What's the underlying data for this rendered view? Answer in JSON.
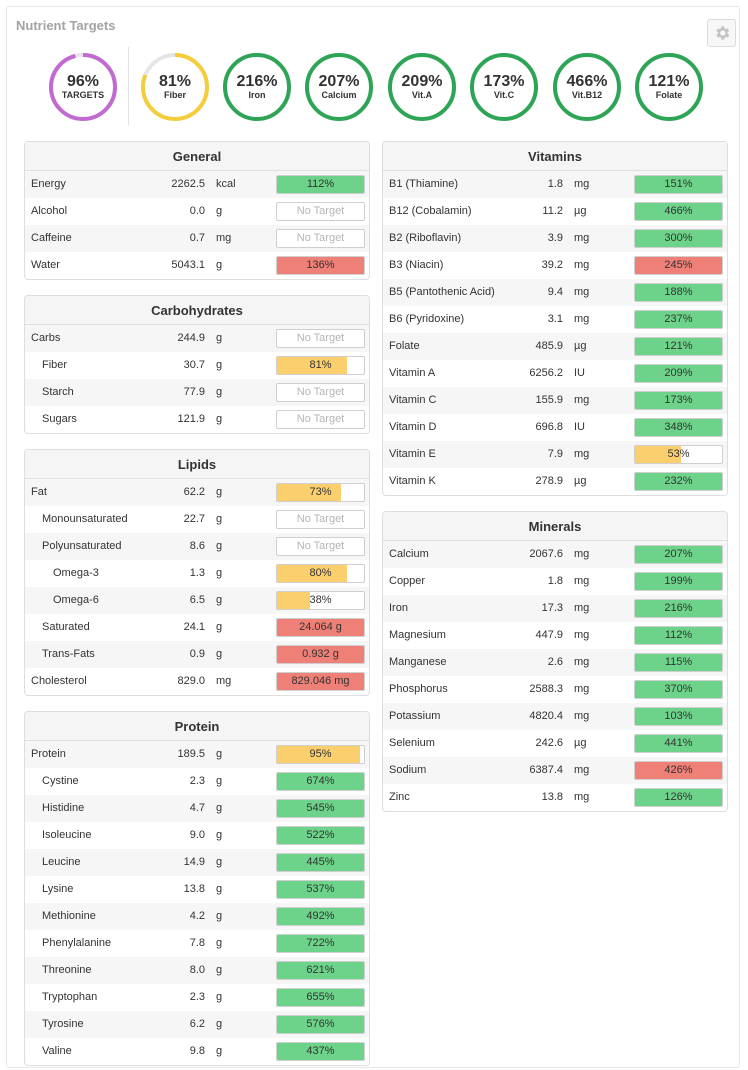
{
  "title": "Nutrient Targets",
  "settings_icon": "gear-icon",
  "colors": {
    "purple": "#c26ad1",
    "yellow": "#f5cd3a",
    "green": "#2ea556",
    "track": "#e5e5e5",
    "bar_green": "#6dd38a",
    "bar_yellow": "#fbcf6e",
    "bar_red": "#ef8078"
  },
  "rings": [
    {
      "pct": "96%",
      "label": "TARGETS",
      "value": 96,
      "color": "purple"
    },
    {
      "pct": "81%",
      "label": "Fiber",
      "value": 81,
      "color": "yellow"
    },
    {
      "pct": "216%",
      "label": "Iron",
      "value": 216,
      "color": "green"
    },
    {
      "pct": "207%",
      "label": "Calcium",
      "value": 207,
      "color": "green"
    },
    {
      "pct": "209%",
      "label": "Vit.A",
      "value": 209,
      "color": "green"
    },
    {
      "pct": "173%",
      "label": "Vit.C",
      "value": 173,
      "color": "green"
    },
    {
      "pct": "466%",
      "label": "Vit.B12",
      "value": 466,
      "color": "green"
    },
    {
      "pct": "121%",
      "label": "Folate",
      "value": 121,
      "color": "green"
    }
  ],
  "panels": {
    "general": {
      "title": "General",
      "rows": [
        {
          "name": "Energy",
          "amount": "2262.5",
          "unit": "kcal",
          "bar": "112%",
          "fill": 1,
          "color": "green",
          "indent": 0
        },
        {
          "name": "Alcohol",
          "amount": "0.0",
          "unit": "g",
          "bar": "No Target",
          "fill": 0,
          "color": "none",
          "indent": 0
        },
        {
          "name": "Caffeine",
          "amount": "0.7",
          "unit": "mg",
          "bar": "No Target",
          "fill": 0,
          "color": "none",
          "indent": 0
        },
        {
          "name": "Water",
          "amount": "5043.1",
          "unit": "g",
          "bar": "136%",
          "fill": 1,
          "color": "red",
          "indent": 0
        }
      ]
    },
    "carbohydrates": {
      "title": "Carbohydrates",
      "rows": [
        {
          "name": "Carbs",
          "amount": "244.9",
          "unit": "g",
          "bar": "No Target",
          "fill": 0,
          "color": "none",
          "indent": 0
        },
        {
          "name": "Fiber",
          "amount": "30.7",
          "unit": "g",
          "bar": "81%",
          "fill": 0.81,
          "color": "yellow",
          "indent": 1
        },
        {
          "name": "Starch",
          "amount": "77.9",
          "unit": "g",
          "bar": "No Target",
          "fill": 0,
          "color": "none",
          "indent": 1
        },
        {
          "name": "Sugars",
          "amount": "121.9",
          "unit": "g",
          "bar": "No Target",
          "fill": 0,
          "color": "none",
          "indent": 1
        }
      ]
    },
    "lipids": {
      "title": "Lipids",
      "rows": [
        {
          "name": "Fat",
          "amount": "62.2",
          "unit": "g",
          "bar": "73%",
          "fill": 0.73,
          "color": "yellow",
          "indent": 0
        },
        {
          "name": "Monounsaturated",
          "amount": "22.7",
          "unit": "g",
          "bar": "No Target",
          "fill": 0,
          "color": "none",
          "indent": 1
        },
        {
          "name": "Polyunsaturated",
          "amount": "8.6",
          "unit": "g",
          "bar": "No Target",
          "fill": 0,
          "color": "none",
          "indent": 1
        },
        {
          "name": "Omega-3",
          "amount": "1.3",
          "unit": "g",
          "bar": "80%",
          "fill": 0.8,
          "color": "yellow",
          "indent": 2
        },
        {
          "name": "Omega-6",
          "amount": "6.5",
          "unit": "g",
          "bar": "38%",
          "fill": 0.38,
          "color": "yellow",
          "indent": 2
        },
        {
          "name": "Saturated",
          "amount": "24.1",
          "unit": "g",
          "bar": "24.064 g",
          "fill": 1,
          "color": "red",
          "indent": 1
        },
        {
          "name": "Trans-Fats",
          "amount": "0.9",
          "unit": "g",
          "bar": "0.932 g",
          "fill": 1,
          "color": "red",
          "indent": 1
        },
        {
          "name": "Cholesterol",
          "amount": "829.0",
          "unit": "mg",
          "bar": "829.046 mg",
          "fill": 1,
          "color": "red",
          "indent": 0
        }
      ]
    },
    "protein": {
      "title": "Protein",
      "rows": [
        {
          "name": "Protein",
          "amount": "189.5",
          "unit": "g",
          "bar": "95%",
          "fill": 0.95,
          "color": "yellow",
          "indent": 0
        },
        {
          "name": "Cystine",
          "amount": "2.3",
          "unit": "g",
          "bar": "674%",
          "fill": 1,
          "color": "green",
          "indent": 1
        },
        {
          "name": "Histidine",
          "amount": "4.7",
          "unit": "g",
          "bar": "545%",
          "fill": 1,
          "color": "green",
          "indent": 1
        },
        {
          "name": "Isoleucine",
          "amount": "9.0",
          "unit": "g",
          "bar": "522%",
          "fill": 1,
          "color": "green",
          "indent": 1
        },
        {
          "name": "Leucine",
          "amount": "14.9",
          "unit": "g",
          "bar": "445%",
          "fill": 1,
          "color": "green",
          "indent": 1
        },
        {
          "name": "Lysine",
          "amount": "13.8",
          "unit": "g",
          "bar": "537%",
          "fill": 1,
          "color": "green",
          "indent": 1
        },
        {
          "name": "Methionine",
          "amount": "4.2",
          "unit": "g",
          "bar": "492%",
          "fill": 1,
          "color": "green",
          "indent": 1
        },
        {
          "name": "Phenylalanine",
          "amount": "7.8",
          "unit": "g",
          "bar": "722%",
          "fill": 1,
          "color": "green",
          "indent": 1
        },
        {
          "name": "Threonine",
          "amount": "8.0",
          "unit": "g",
          "bar": "621%",
          "fill": 1,
          "color": "green",
          "indent": 1
        },
        {
          "name": "Tryptophan",
          "amount": "2.3",
          "unit": "g",
          "bar": "655%",
          "fill": 1,
          "color": "green",
          "indent": 1
        },
        {
          "name": "Tyrosine",
          "amount": "6.2",
          "unit": "g",
          "bar": "576%",
          "fill": 1,
          "color": "green",
          "indent": 1
        },
        {
          "name": "Valine",
          "amount": "9.8",
          "unit": "g",
          "bar": "437%",
          "fill": 1,
          "color": "green",
          "indent": 1
        }
      ]
    },
    "vitamins": {
      "title": "Vitamins",
      "rows": [
        {
          "name": "B1 (Thiamine)",
          "amount": "1.8",
          "unit": "mg",
          "bar": "151%",
          "fill": 1,
          "color": "green",
          "indent": 0
        },
        {
          "name": "B12 (Cobalamin)",
          "amount": "11.2",
          "unit": "µg",
          "bar": "466%",
          "fill": 1,
          "color": "green",
          "indent": 0
        },
        {
          "name": "B2 (Riboflavin)",
          "amount": "3.9",
          "unit": "mg",
          "bar": "300%",
          "fill": 1,
          "color": "green",
          "indent": 0
        },
        {
          "name": "B3 (Niacin)",
          "amount": "39.2",
          "unit": "mg",
          "bar": "245%",
          "fill": 1,
          "color": "red",
          "indent": 0
        },
        {
          "name": "B5 (Pantothenic Acid)",
          "amount": "9.4",
          "unit": "mg",
          "bar": "188%",
          "fill": 1,
          "color": "green",
          "indent": 0
        },
        {
          "name": "B6 (Pyridoxine)",
          "amount": "3.1",
          "unit": "mg",
          "bar": "237%",
          "fill": 1,
          "color": "green",
          "indent": 0
        },
        {
          "name": "Folate",
          "amount": "485.9",
          "unit": "µg",
          "bar": "121%",
          "fill": 1,
          "color": "green",
          "indent": 0
        },
        {
          "name": "Vitamin A",
          "amount": "6256.2",
          "unit": "IU",
          "bar": "209%",
          "fill": 1,
          "color": "green",
          "indent": 0
        },
        {
          "name": "Vitamin C",
          "amount": "155.9",
          "unit": "mg",
          "bar": "173%",
          "fill": 1,
          "color": "green",
          "indent": 0
        },
        {
          "name": "Vitamin D",
          "amount": "696.8",
          "unit": "IU",
          "bar": "348%",
          "fill": 1,
          "color": "green",
          "indent": 0
        },
        {
          "name": "Vitamin E",
          "amount": "7.9",
          "unit": "mg",
          "bar": "53%",
          "fill": 0.53,
          "color": "yellow",
          "indent": 0
        },
        {
          "name": "Vitamin K",
          "amount": "278.9",
          "unit": "µg",
          "bar": "232%",
          "fill": 1,
          "color": "green",
          "indent": 0
        }
      ]
    },
    "minerals": {
      "title": "Minerals",
      "rows": [
        {
          "name": "Calcium",
          "amount": "2067.6",
          "unit": "mg",
          "bar": "207%",
          "fill": 1,
          "color": "green",
          "indent": 0
        },
        {
          "name": "Copper",
          "amount": "1.8",
          "unit": "mg",
          "bar": "199%",
          "fill": 1,
          "color": "green",
          "indent": 0
        },
        {
          "name": "Iron",
          "amount": "17.3",
          "unit": "mg",
          "bar": "216%",
          "fill": 1,
          "color": "green",
          "indent": 0
        },
        {
          "name": "Magnesium",
          "amount": "447.9",
          "unit": "mg",
          "bar": "112%",
          "fill": 1,
          "color": "green",
          "indent": 0
        },
        {
          "name": "Manganese",
          "amount": "2.6",
          "unit": "mg",
          "bar": "115%",
          "fill": 1,
          "color": "green",
          "indent": 0
        },
        {
          "name": "Phosphorus",
          "amount": "2588.3",
          "unit": "mg",
          "bar": "370%",
          "fill": 1,
          "color": "green",
          "indent": 0
        },
        {
          "name": "Potassium",
          "amount": "4820.4",
          "unit": "mg",
          "bar": "103%",
          "fill": 1,
          "color": "green",
          "indent": 0
        },
        {
          "name": "Selenium",
          "amount": "242.6",
          "unit": "µg",
          "bar": "441%",
          "fill": 1,
          "color": "green",
          "indent": 0
        },
        {
          "name": "Sodium",
          "amount": "6387.4",
          "unit": "mg",
          "bar": "426%",
          "fill": 1,
          "color": "red",
          "indent": 0
        },
        {
          "name": "Zinc",
          "amount": "13.8",
          "unit": "mg",
          "bar": "126%",
          "fill": 1,
          "color": "green",
          "indent": 0
        }
      ]
    }
  }
}
